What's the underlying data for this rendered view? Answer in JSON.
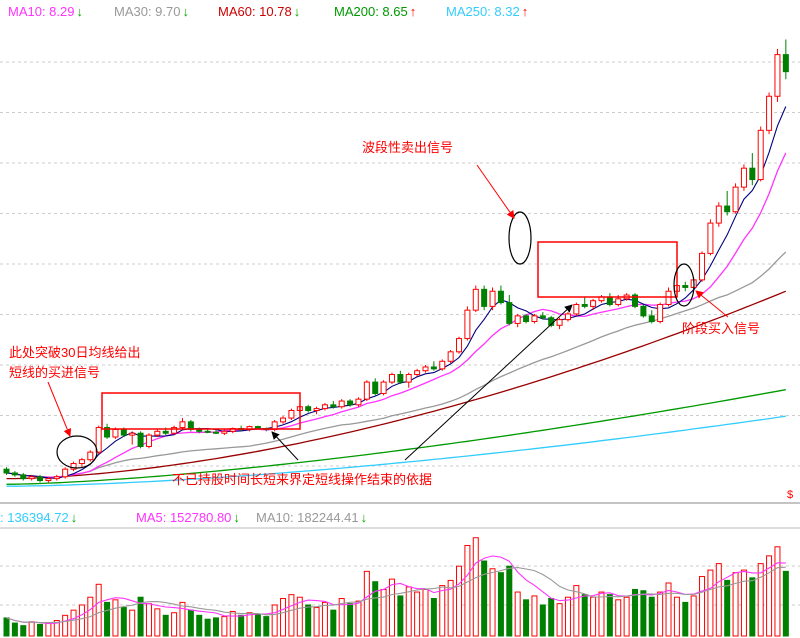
{
  "top_legend": [
    {
      "label": "MA10: 8.29",
      "arrow": "↓",
      "color": "#ff33ff",
      "arrow_color": "#00aa00"
    },
    {
      "label": "MA30: 9.70",
      "arrow": "↓",
      "color": "#999999",
      "arrow_color": "#00aa00"
    },
    {
      "label": "MA60: 10.78",
      "arrow": "↓",
      "color": "#cc0000",
      "arrow_color": "#00aa00"
    },
    {
      "label": "MA200: 8.65",
      "arrow": "↑",
      "color": "#009900",
      "arrow_color": "#ff0000"
    },
    {
      "label": "MA250: 8.32",
      "arrow": "↑",
      "color": "#33ccff",
      "arrow_color": "#ff0000"
    }
  ],
  "volume_legend": [
    {
      "label": ": 136394.72",
      "arrow": "↓",
      "color": "#33ccff",
      "arrow_color": "#00aa00"
    },
    {
      "label": "MA5: 152780.80",
      "arrow": "↓",
      "color": "#ff33ff",
      "arrow_color": "#00aa00"
    },
    {
      "label": "MA10: 182244.41",
      "arrow": "↓",
      "color": "#999999",
      "arrow_color": "#00aa00"
    }
  ],
  "annotations": {
    "sell_signal": "波段性卖出信号",
    "buy_signal_line1": "此处突破30日均线给出",
    "buy_signal_line2": "短线的买进信号",
    "stage_buy": "阶段买入信号",
    "basis": "不已持股时间长短来界定短线操作结束的依据"
  },
  "colors": {
    "up": "#ff0000",
    "down": "#008000",
    "annotation": "#ff0000",
    "ma_short": "#000080",
    "ma10": "#ff33ff",
    "ma30": "#999999",
    "ma60": "#990000",
    "ma200": "#009900",
    "ma250": "#33ccff",
    "grid": "#cccccc",
    "circle": "#000000"
  },
  "chart_data": {
    "type": "candlestick",
    "price_axis_note": "price axis not labeled",
    "candles": [
      [
        2.6,
        2.7,
        2.3,
        2.4
      ],
      [
        2.4,
        2.5,
        2.2,
        2.3
      ],
      [
        2.3,
        2.4,
        2.0,
        2.1
      ],
      [
        2.1,
        2.3,
        2.0,
        2.2
      ],
      [
        2.2,
        2.3,
        1.9,
        2.0
      ],
      [
        2.0,
        2.2,
        1.9,
        2.1
      ],
      [
        2.1,
        2.3,
        2.0,
        2.2
      ],
      [
        2.2,
        2.7,
        2.1,
        2.6
      ],
      [
        2.6,
        3.0,
        2.5,
        2.9
      ],
      [
        2.9,
        3.2,
        2.7,
        3.1
      ],
      [
        3.1,
        3.6,
        3.0,
        3.5
      ],
      [
        3.5,
        4.9,
        3.4,
        4.8
      ],
      [
        4.8,
        5.0,
        4.2,
        4.3
      ],
      [
        4.3,
        4.8,
        4.2,
        4.7
      ],
      [
        4.7,
        4.8,
        4.3,
        4.4
      ],
      [
        4.4,
        4.6,
        3.9,
        4.5
      ],
      [
        4.5,
        4.6,
        3.7,
        3.8
      ],
      [
        3.8,
        4.5,
        3.7,
        4.4
      ],
      [
        4.4,
        4.7,
        4.3,
        4.6
      ],
      [
        4.6,
        4.8,
        4.4,
        4.5
      ],
      [
        4.5,
        4.9,
        4.4,
        4.8
      ],
      [
        4.8,
        5.3,
        4.7,
        5.1
      ],
      [
        5.1,
        5.2,
        4.6,
        4.7
      ],
      [
        4.7,
        4.8,
        4.5,
        4.6
      ],
      [
        4.6,
        4.7,
        4.5,
        4.55
      ],
      [
        4.55,
        4.7,
        4.45,
        4.5
      ],
      [
        4.5,
        4.7,
        4.4,
        4.6
      ],
      [
        4.6,
        4.8,
        4.5,
        4.75
      ],
      [
        4.75,
        4.9,
        4.6,
        4.7
      ],
      [
        4.7,
        4.9,
        4.6,
        4.85
      ],
      [
        4.85,
        4.9,
        4.7,
        4.75
      ],
      [
        4.75,
        4.8,
        4.6,
        4.7
      ],
      [
        4.7,
        5.2,
        4.6,
        5.1
      ],
      [
        5.1,
        5.4,
        5.0,
        5.3
      ],
      [
        5.3,
        5.8,
        5.2,
        5.7
      ],
      [
        5.7,
        6.0,
        5.6,
        5.9
      ],
      [
        5.9,
        6.0,
        5.6,
        5.7
      ],
      [
        5.7,
        5.9,
        5.5,
        5.8
      ],
      [
        5.8,
        6.1,
        5.7,
        6.0
      ],
      [
        6.0,
        6.2,
        5.8,
        5.9
      ],
      [
        5.9,
        6.3,
        5.8,
        6.2
      ],
      [
        6.2,
        6.3,
        5.9,
        6.0
      ],
      [
        6.0,
        6.4,
        5.9,
        6.3
      ],
      [
        6.3,
        7.3,
        6.2,
        7.2
      ],
      [
        7.2,
        7.4,
        6.5,
        6.6
      ],
      [
        6.6,
        7.3,
        6.5,
        7.2
      ],
      [
        7.2,
        7.7,
        7.1,
        7.6
      ],
      [
        7.6,
        7.8,
        7.1,
        7.2
      ],
      [
        7.2,
        7.7,
        6.9,
        7.6
      ],
      [
        7.6,
        7.9,
        7.5,
        7.8
      ],
      [
        7.8,
        8.1,
        7.7,
        8.0
      ],
      [
        8.0,
        8.3,
        7.8,
        7.9
      ],
      [
        7.9,
        8.4,
        7.8,
        8.3
      ],
      [
        8.3,
        8.9,
        8.2,
        8.8
      ],
      [
        8.8,
        9.6,
        8.7,
        9.5
      ],
      [
        9.5,
        11.2,
        9.4,
        11.0
      ],
      [
        11.0,
        12.3,
        10.9,
        12.1
      ],
      [
        12.1,
        12.3,
        11.0,
        11.2
      ],
      [
        11.2,
        12.2,
        11.0,
        12.0
      ],
      [
        12.0,
        12.3,
        11.3,
        11.4
      ],
      [
        11.4,
        11.8,
        10.2,
        10.3
      ],
      [
        10.3,
        10.8,
        10.1,
        10.7
      ],
      [
        10.7,
        10.8,
        10.3,
        10.4
      ],
      [
        10.4,
        10.8,
        10.3,
        10.7
      ],
      [
        10.7,
        10.9,
        10.5,
        10.6
      ],
      [
        10.6,
        10.7,
        10.1,
        10.2
      ],
      [
        10.2,
        10.6,
        10.0,
        10.5
      ],
      [
        10.5,
        10.9,
        10.4,
        10.8
      ],
      [
        10.8,
        11.4,
        10.7,
        11.3
      ],
      [
        11.3,
        11.7,
        11.1,
        11.2
      ],
      [
        11.2,
        11.6,
        11.0,
        11.5
      ],
      [
        11.5,
        11.8,
        11.4,
        11.7
      ],
      [
        11.7,
        11.9,
        11.2,
        11.3
      ],
      [
        11.3,
        11.8,
        11.2,
        11.6
      ],
      [
        11.6,
        11.9,
        11.5,
        11.8
      ],
      [
        11.8,
        11.9,
        11.1,
        11.2
      ],
      [
        11.2,
        11.3,
        10.6,
        10.7
      ],
      [
        10.7,
        11.0,
        10.3,
        10.4
      ],
      [
        10.4,
        11.4,
        10.3,
        11.3
      ],
      [
        11.3,
        12.2,
        11.2,
        12.0
      ],
      [
        12.0,
        12.4,
        11.9,
        12.3
      ],
      [
        12.3,
        12.5,
        12.0,
        12.2
      ],
      [
        12.2,
        12.7,
        12.1,
        12.6
      ],
      [
        12.6,
        14.1,
        12.5,
        14.0
      ],
      [
        14.0,
        15.8,
        13.9,
        15.6
      ],
      [
        15.6,
        16.7,
        15.4,
        16.5
      ],
      [
        16.5,
        17.3,
        16.0,
        16.2
      ],
      [
        16.2,
        17.7,
        16.1,
        17.5
      ],
      [
        17.5,
        18.7,
        17.3,
        18.5
      ],
      [
        18.5,
        19.3,
        17.6,
        17.9
      ],
      [
        17.9,
        20.7,
        17.8,
        20.5
      ],
      [
        20.5,
        22.5,
        20.3,
        22.3
      ],
      [
        22.3,
        24.8,
        22.0,
        24.5
      ],
      [
        24.5,
        25.3,
        23.2,
        23.6
      ]
    ],
    "volume": [
      1.4,
      1.0,
      0.8,
      1.1,
      0.9,
      1.0,
      1.2,
      1.6,
      2.0,
      2.4,
      3.0,
      4.0,
      2.6,
      2.8,
      2.2,
      2.0,
      3.0,
      2.5,
      2.1,
      1.6,
      1.8,
      2.6,
      2.0,
      1.6,
      1.3,
      1.4,
      1.5,
      1.9,
      1.6,
      1.8,
      1.7,
      1.5,
      2.4,
      2.9,
      3.2,
      3.0,
      2.4,
      2.2,
      2.6,
      2.0,
      2.9,
      2.5,
      2.7,
      5.0,
      4.2,
      3.6,
      4.4,
      3.1,
      3.8,
      3.4,
      3.6,
      2.9,
      3.9,
      4.3,
      5.4,
      7.0,
      7.6,
      5.8,
      5.2,
      4.9,
      5.4,
      3.4,
      2.8,
      3.1,
      2.4,
      2.9,
      2.5,
      3.0,
      3.9,
      3.2,
      3.0,
      3.4,
      3.2,
      2.8,
      3.0,
      3.6,
      3.5,
      3.0,
      3.4,
      4.1,
      3.0,
      2.6,
      3.1,
      4.6,
      5.1,
      5.6,
      4.3,
      4.9,
      5.1,
      4.5,
      5.6,
      6.2,
      6.9,
      5.0
    ],
    "series": [
      {
        "name": "MA10",
        "note": "magenta"
      },
      {
        "name": "MA30",
        "note": "gray"
      },
      {
        "name": "MA60",
        "note": "dark red"
      },
      {
        "name": "MA200",
        "note": "green"
      },
      {
        "name": "MA250",
        "note": "cyan"
      }
    ]
  }
}
